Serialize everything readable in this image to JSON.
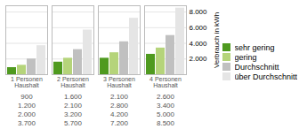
{
  "chart_data": {
    "type": "bar",
    "categories": [
      "1 Personen Haushalt",
      "2 Personen Haushalt",
      "3 Personen Haushalt",
      "4 Personen Haushalt"
    ],
    "series": [
      {
        "name": "sehr gering",
        "color": "#4f9a1f",
        "values": [
          900,
          1600,
          2100,
          2600
        ],
        "value_labels": [
          "900",
          "1.600",
          "2.100",
          "2.600"
        ]
      },
      {
        "name": "gering",
        "color": "#b5d47a",
        "values": [
          1200,
          2100,
          2800,
          3400
        ],
        "value_labels": [
          "1.200",
          "2.100",
          "2.800",
          "3.400"
        ]
      },
      {
        "name": "Durchschnitt",
        "color": "#c0c0c0",
        "values": [
          2000,
          3200,
          4200,
          5000
        ],
        "value_labels": [
          "2.000",
          "3.200",
          "4.200",
          "5.000"
        ]
      },
      {
        "name": "über Durchschnitt",
        "color": "#e5e5e5",
        "values": [
          3700,
          5700,
          7200,
          8500
        ],
        "value_labels": [
          "3.700",
          "5.700",
          "7.200",
          "8.500"
        ]
      }
    ],
    "ylabel": "Verbrauch in kWh",
    "ylim": [
      0,
      8800
    ],
    "yticks": [
      {
        "value": 2000,
        "label": "2.000"
      },
      {
        "value": 4000,
        "label": "4.000"
      },
      {
        "value": 6000,
        "label": "6.000"
      },
      {
        "value": 8000,
        "label": "8.000"
      }
    ],
    "grid": true,
    "legend": "right",
    "data_labels": true
  }
}
